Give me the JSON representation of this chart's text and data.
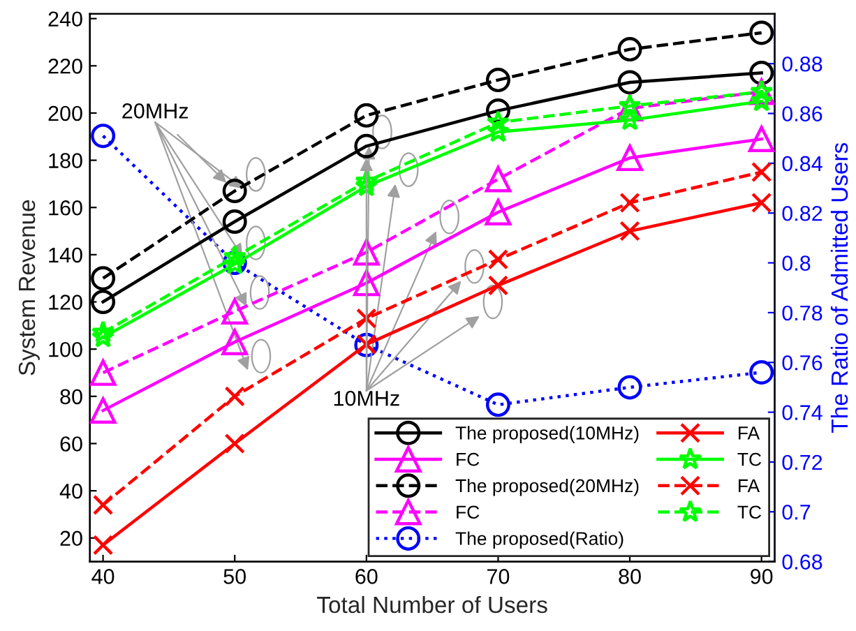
{
  "chart_data": {
    "type": "line",
    "xlabel": "Total Number of Users",
    "ylabel": "System Revenue",
    "y2label": "The Ratio of Admitted Users",
    "x": [
      40,
      50,
      60,
      70,
      80,
      90
    ],
    "xlim": [
      39,
      91
    ],
    "xticks": [
      40,
      50,
      60,
      70,
      80,
      90
    ],
    "ylim": [
      10,
      242
    ],
    "yticks": [
      20,
      40,
      60,
      80,
      100,
      120,
      140,
      160,
      180,
      200,
      220,
      240
    ],
    "y2lim": [
      0.68,
      0.9
    ],
    "y2ticks": [
      0.68,
      0.7,
      0.72,
      0.74,
      0.76,
      0.78,
      0.8,
      0.82,
      0.84,
      0.86,
      0.88
    ],
    "grid": false,
    "legend": "bottom right",
    "annotations": [
      {
        "text": "20MHz",
        "x": 50,
        "y": 167
      },
      {
        "text": "10MHz",
        "x": 60,
        "y": 186
      }
    ],
    "series": [
      {
        "name": "The proposed(10MHz)",
        "color": "#000000",
        "marker": "circle",
        "line_style": "solid",
        "values": [
          120,
          154,
          186,
          201,
          213,
          217
        ]
      },
      {
        "name": "FC",
        "color": "#ff00ff",
        "marker": "triangle",
        "line_style": "solid",
        "values": [
          74,
          103,
          128,
          158,
          181,
          189
        ]
      },
      {
        "name": "The proposed(20MHz)",
        "color": "#000000",
        "marker": "circle",
        "line_style": "dashed",
        "values": [
          130,
          167,
          199,
          214,
          227,
          234
        ]
      },
      {
        "name": "FC",
        "color": "#ff00ff",
        "marker": "triangle",
        "line_style": "dashed",
        "values": [
          90,
          116,
          141,
          172,
          202,
          209
        ]
      },
      {
        "name": "The proposed(Ratio)",
        "color": "#0000ff",
        "marker": "circle",
        "line_style": "dotted",
        "axis": "y2",
        "values": [
          0.851,
          0.8,
          0.767,
          0.743,
          0.75,
          0.756
        ]
      },
      {
        "name": "FA",
        "color": "#ff0000",
        "marker": "cross",
        "line_style": "solid",
        "values": [
          17,
          60,
          102,
          127,
          150,
          162
        ]
      },
      {
        "name": "TC",
        "color": "#00ff00",
        "marker": "star",
        "line_style": "solid",
        "values": [
          105,
          136,
          169,
          192,
          197,
          205
        ]
      },
      {
        "name": "FA",
        "color": "#ff0000",
        "marker": "cross",
        "line_style": "dashed",
        "values": [
          34,
          80,
          113,
          138,
          162,
          175
        ]
      },
      {
        "name": "TC",
        "color": "#00ff00",
        "marker": "star",
        "line_style": "dashed",
        "values": [
          107,
          139,
          171,
          196,
          203,
          209
        ]
      }
    ]
  }
}
